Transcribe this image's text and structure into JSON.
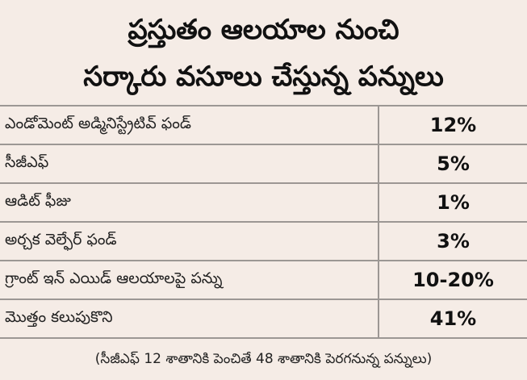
{
  "title": {
    "line1": "ప్రస్తుతం ఆలయాల నుంచి",
    "line2": "సర్కారు వసూలు చేస్తున్న పన్నులు"
  },
  "rows": [
    {
      "label": "ఎండోమెంట్ అడ్మినిస్ట్రేటివ్ ఫండ్",
      "value": "12%"
    },
    {
      "label": "సీజీఎఫ్",
      "value": "5%"
    },
    {
      "label": "ఆడిట్ ఫీజు",
      "value": "1%"
    },
    {
      "label": "అర్చక వెల్ఫేర్ ఫండ్",
      "value": "3%"
    },
    {
      "label": "గ్రాంట్ ఇన్ ఎయిడ్ ఆలయాలపై పన్ను",
      "value": "10-20%"
    },
    {
      "label": "మొత్తం కలుపుకొని",
      "value": "41%"
    }
  ],
  "footnote": "(సీజీఎఫ్ 12 శాతానికి పెంచితే 48 శాతానికి పెరగనున్న పన్నులు)"
}
